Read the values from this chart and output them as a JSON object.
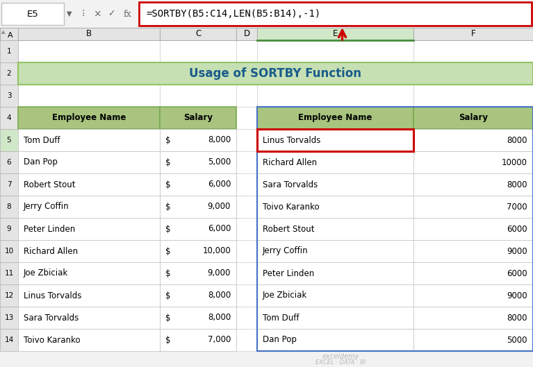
{
  "title": "Usage of SORTBY Function",
  "formula_bar_text": "=SORTBY(B5:C14,LEN(B5:B14),-1)",
  "cell_ref": "E5",
  "left_headers": [
    "Employee Name",
    "Salary"
  ],
  "left_data": [
    [
      "Tom Duff",
      "$",
      "8,000"
    ],
    [
      "Dan Pop",
      "$",
      "5,000"
    ],
    [
      "Robert Stout",
      "$",
      "6,000"
    ],
    [
      "Jerry Coffin",
      "$",
      "9,000"
    ],
    [
      "Peter Linden",
      "$",
      "6,000"
    ],
    [
      "Richard Allen",
      "$",
      "10,000"
    ],
    [
      "Joe Zbiciak",
      "$",
      "9,000"
    ],
    [
      "Linus Torvalds",
      "$",
      "8,000"
    ],
    [
      "Sara Torvalds",
      "$",
      "8,000"
    ],
    [
      "Toivo Karanko",
      "$",
      "7,000"
    ]
  ],
  "right_headers": [
    "Employee Name",
    "Salary"
  ],
  "right_data": [
    [
      "Linus Torvalds",
      "8000"
    ],
    [
      "Richard Allen",
      "10000"
    ],
    [
      "Sara Torvalds",
      "8000"
    ],
    [
      "Toivo Karanko",
      "7000"
    ],
    [
      "Robert Stout",
      "6000"
    ],
    [
      "Jerry Coffin",
      "9000"
    ],
    [
      "Peter Linden",
      "6000"
    ],
    [
      "Joe Zbiciak",
      "9000"
    ],
    [
      "Tom Duff",
      "8000"
    ],
    [
      "Dan Pop",
      "5000"
    ]
  ],
  "header_bg": "#a8c47e",
  "header_border": "#7aab52",
  "title_bg": "#c6e0b4",
  "title_border": "#92c462",
  "formula_border": "#cc0000",
  "highlight_border": "#cc0000",
  "right_table_border": "#4472c4",
  "arrow_color": "#cc0000",
  "col_hdr_bg": "#e4e4e4",
  "col_hdr_highlight": "#d0e8c8",
  "row_hdr_highlight": "#d0e8c8",
  "watermark_line1": "exceldemy",
  "watermark_line2": "EXCEL · DATA · BI"
}
